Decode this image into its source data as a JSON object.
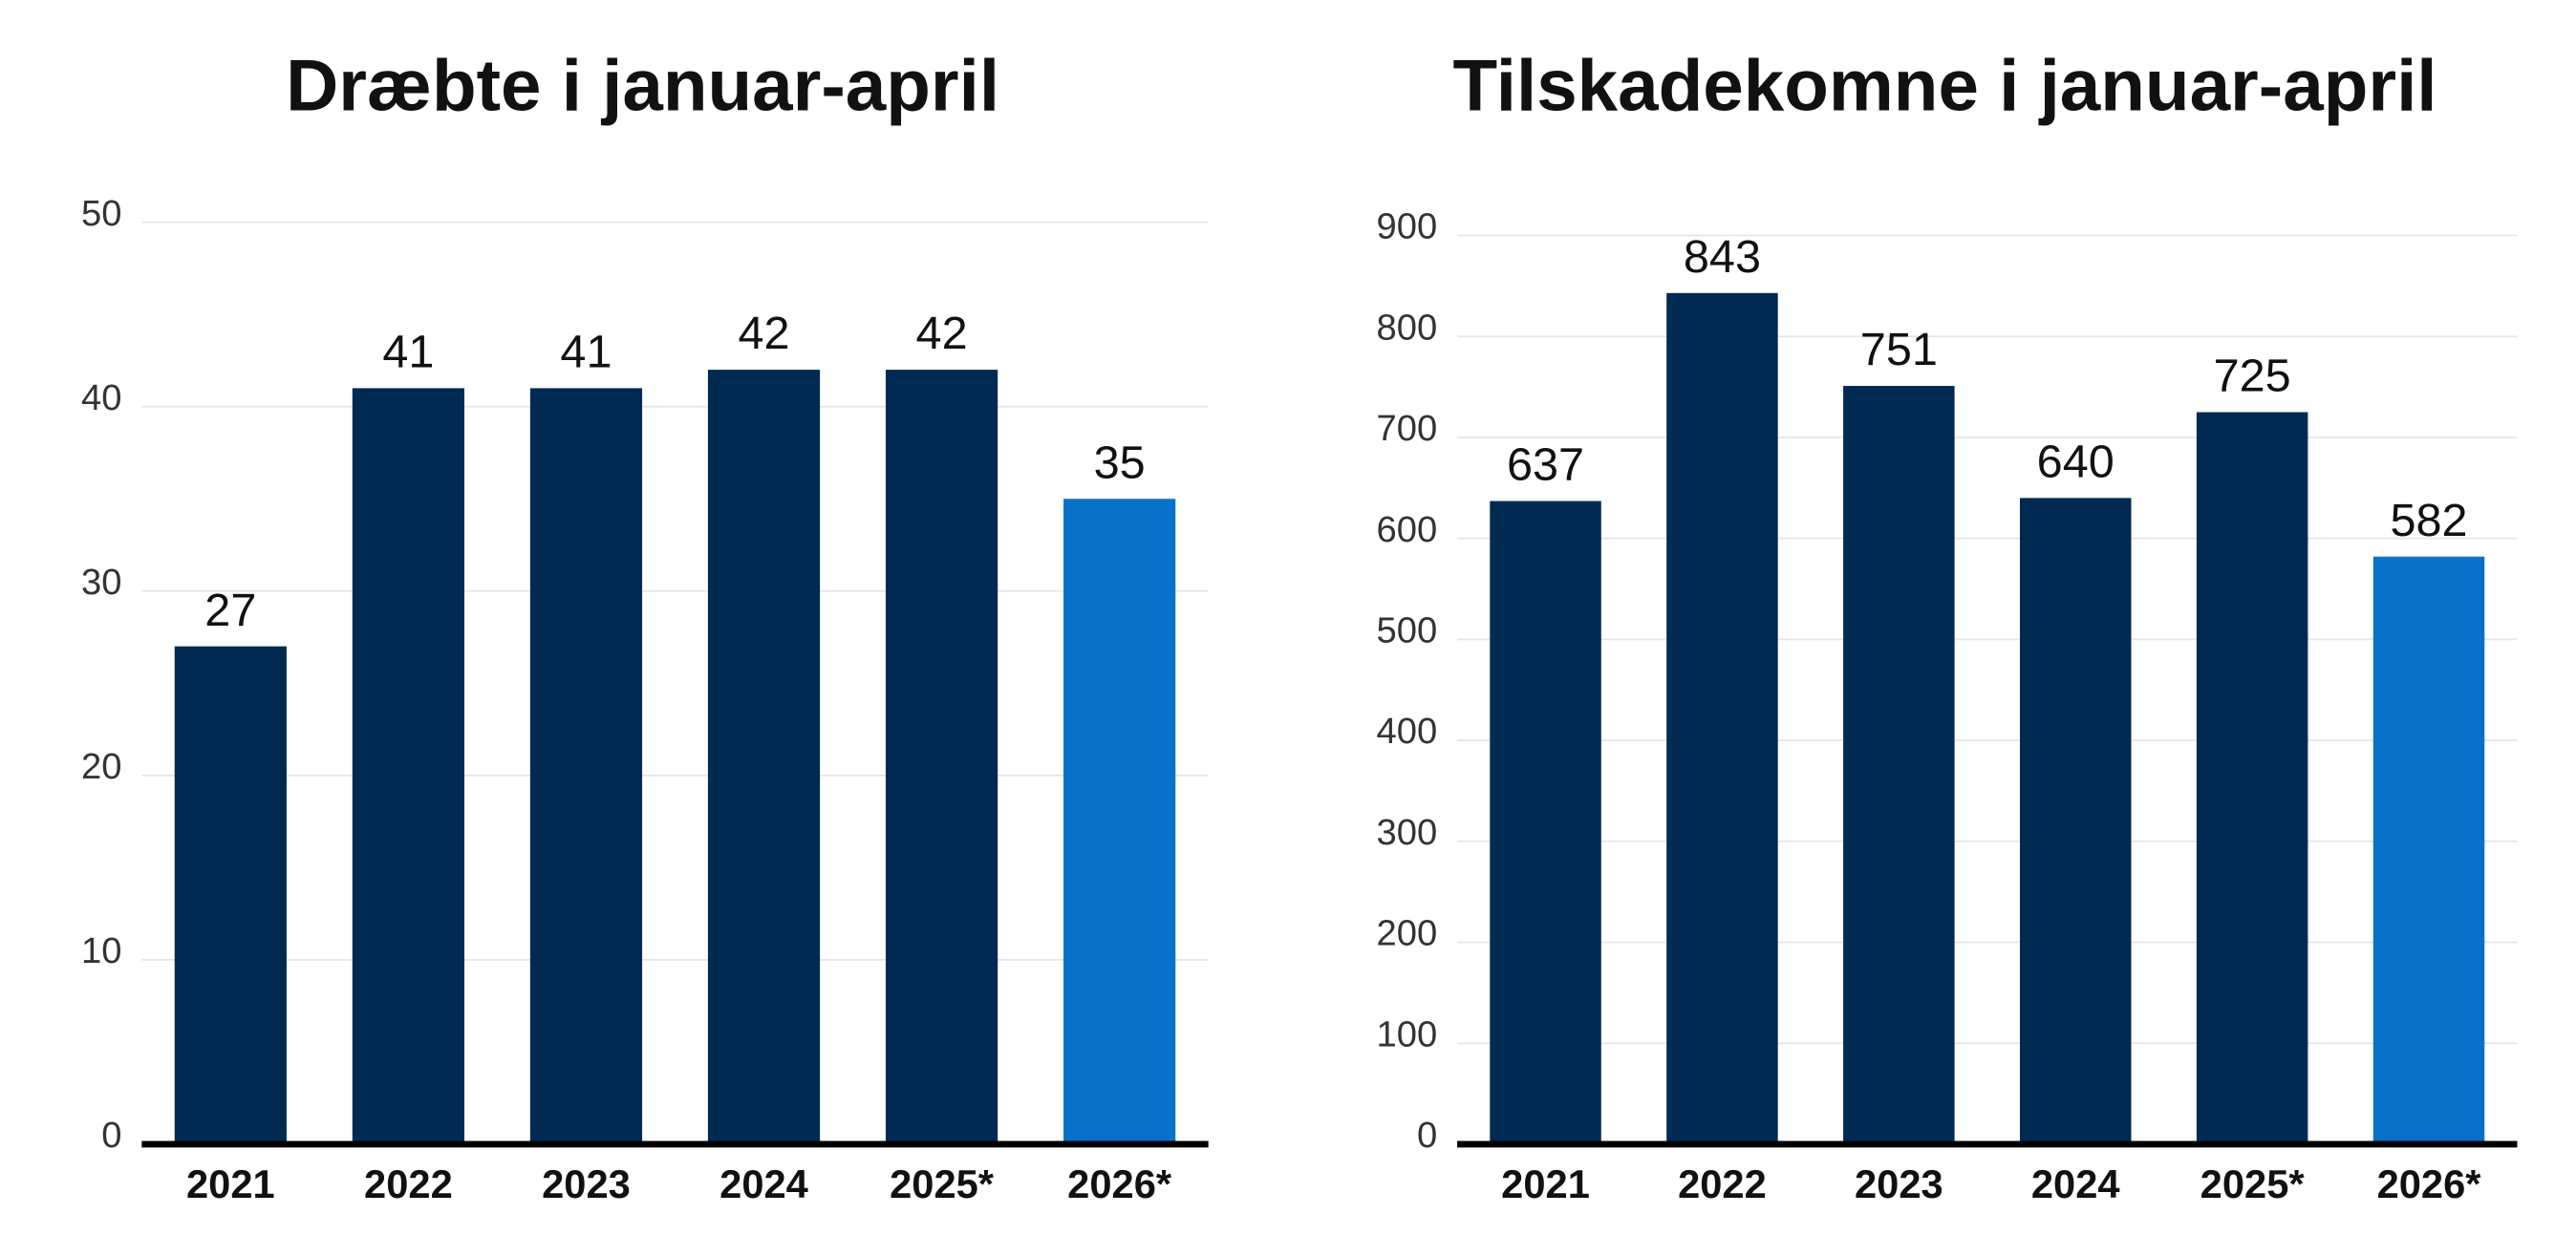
{
  "chart_data": [
    {
      "type": "bar",
      "title": "Dræbte i januar-april",
      "categories": [
        "2021",
        "2022",
        "2023",
        "2024",
        "2025*",
        "2026*"
      ],
      "values": [
        27,
        41,
        41,
        42,
        42,
        35
      ],
      "colors": [
        "#002a52",
        "#002a52",
        "#002a52",
        "#002a52",
        "#002a52",
        "#0872c9"
      ],
      "ylim": [
        0,
        50
      ],
      "yticks": [
        0,
        10,
        20,
        30,
        40,
        50
      ],
      "grid": true
    },
    {
      "type": "bar",
      "title": "Tilskadekomne i januar-april",
      "categories": [
        "2021",
        "2022",
        "2023",
        "2024",
        "2025*",
        "2026*"
      ],
      "values": [
        637,
        843,
        751,
        640,
        725,
        582
      ],
      "colors": [
        "#002a52",
        "#002a52",
        "#002a52",
        "#002a52",
        "#002a52",
        "#0872c9"
      ],
      "ylim": [
        0,
        900
      ],
      "yticks": [
        0,
        100,
        200,
        300,
        400,
        500,
        600,
        700,
        800,
        900
      ],
      "grid": true
    }
  ]
}
